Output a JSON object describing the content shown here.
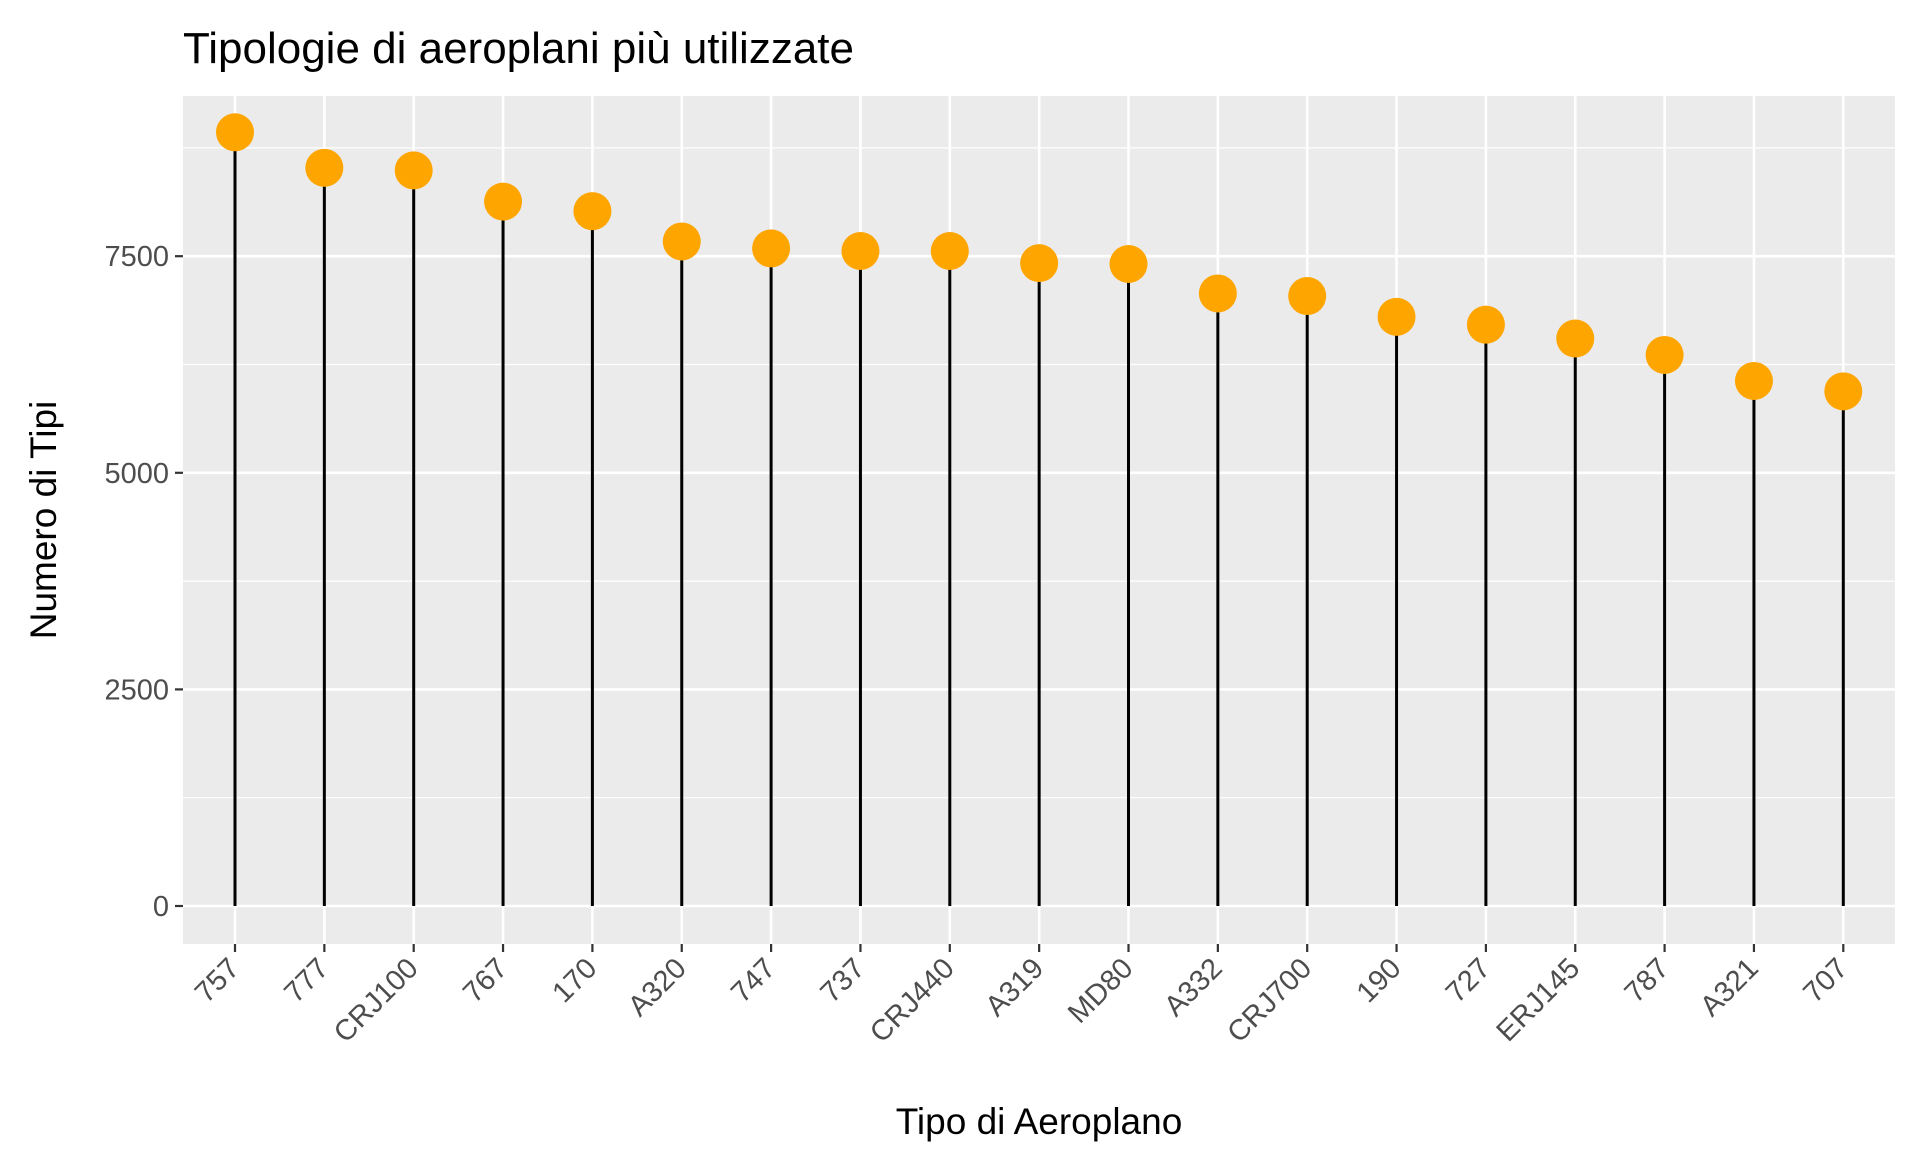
{
  "chart_data": {
    "type": "lollipop",
    "title": "Tipologie di aeroplani più utilizzate",
    "xlabel": "Tipo di Aeroplano",
    "ylabel": "Numero di Tipi",
    "categories": [
      "757",
      "777",
      "CRJ100",
      "767",
      "170",
      "A320",
      "747",
      "737",
      "CRJ440",
      "A319",
      "MD80",
      "A332",
      "CRJ700",
      "190",
      "727",
      "ERJ145",
      "787",
      "A321",
      "707"
    ],
    "values": [
      8930,
      8520,
      8490,
      8130,
      8020,
      7670,
      7590,
      7560,
      7560,
      7420,
      7410,
      7070,
      7040,
      6800,
      6710,
      6550,
      6360,
      6060,
      5940
    ],
    "yticks": [
      0,
      2500,
      5000,
      7500
    ],
    "ylim": [
      -450,
      9400
    ],
    "grid": true,
    "point_color": "#FFA500",
    "stem_color": "#000000",
    "panel_background": "#EBEBEB",
    "grid_color": "#FFFFFF"
  }
}
